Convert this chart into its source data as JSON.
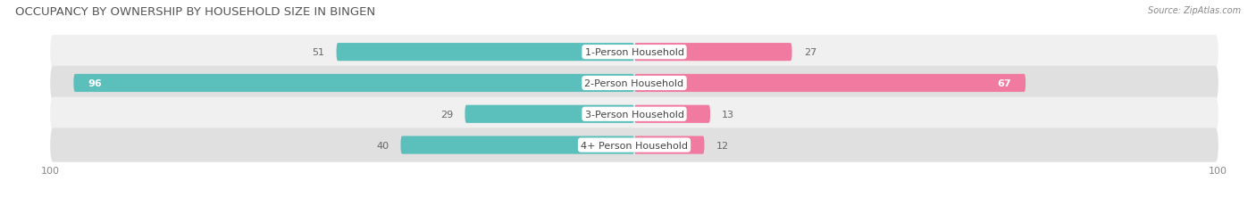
{
  "title": "OCCUPANCY BY OWNERSHIP BY HOUSEHOLD SIZE IN BINGEN",
  "source": "Source: ZipAtlas.com",
  "categories": [
    "1-Person Household",
    "2-Person Household",
    "3-Person Household",
    "4+ Person Household"
  ],
  "owner_values": [
    51,
    96,
    29,
    40
  ],
  "renter_values": [
    27,
    67,
    13,
    12
  ],
  "max_value": 100,
  "owner_color": "#5bbfbc",
  "renter_color": "#f07aa0",
  "row_bg_colors": [
    "#f0f0f0",
    "#e0e0e0",
    "#f0f0f0",
    "#e0e0e0"
  ],
  "label_color_dark": "#666666",
  "label_color_light": "#ffffff",
  "title_fontsize": 9.5,
  "label_fontsize": 8,
  "axis_label_fontsize": 8,
  "legend_fontsize": 8,
  "bar_height": 0.58
}
